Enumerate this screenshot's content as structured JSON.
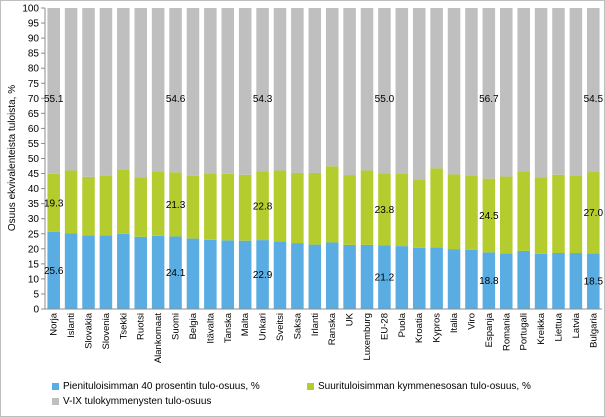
{
  "chart_data": {
    "type": "bar",
    "stacked": true,
    "title": "",
    "xlabel": "",
    "ylabel": "Osuus ekvivalenteista tuloista, %",
    "ylim": [
      0,
      100
    ],
    "yticks": [
      "0",
      "5",
      "10",
      "15",
      "20",
      "25",
      "30",
      "35",
      "40",
      "45",
      "50",
      "55",
      "60",
      "65",
      "70",
      "75",
      "80",
      "85",
      "90",
      "95",
      "100"
    ],
    "grid": false,
    "legend_position": "bottom",
    "categories": [
      "Norja",
      "Islanti",
      "Slovakia",
      "Slovenia",
      "Tsekki",
      "Ruotsi",
      "Alankomaat",
      "Suomi",
      "Belgia",
      "Itävalta",
      "Tanska",
      "Malta",
      "Unkari",
      "Sveitsi",
      "Saksa",
      "Irlanti",
      "Ranska",
      "UK",
      "Luxemburg",
      "EU-28",
      "Puola",
      "Kroatia",
      "Kypros",
      "Italia",
      "Viro",
      "Espanja",
      "Romania",
      "Portugali",
      "Kreikka",
      "Liettua",
      "Latvia",
      "Bulgaria"
    ],
    "series": [
      {
        "name": "Pienituloisimman 40 prosentin tulo-osuus, %",
        "color": "#5aade2",
        "values": [
          25.6,
          25.2,
          24.5,
          24.4,
          25.0,
          24.0,
          24.3,
          24.1,
          23.4,
          23.0,
          22.8,
          22.7,
          22.9,
          22.4,
          21.9,
          21.4,
          22.1,
          21.3,
          21.3,
          21.2,
          20.9,
          20.3,
          20.5,
          19.9,
          19.7,
          18.8,
          18.5,
          19.3,
          18.3,
          18.6,
          18.6,
          18.5
        ]
      },
      {
        "name": "Suurituloisimman kymmenesosan tulo-osuus, %",
        "color": "#b5cc2e",
        "values": [
          19.3,
          20.8,
          19.4,
          19.8,
          21.4,
          19.8,
          21.4,
          21.3,
          20.9,
          22.0,
          22.1,
          21.9,
          22.8,
          23.6,
          23.3,
          23.8,
          25.3,
          23.2,
          24.7,
          23.8,
          24.2,
          22.7,
          26.2,
          24.8,
          24.5,
          24.5,
          25.5,
          26.4,
          25.5,
          26.0,
          25.8,
          27.0
        ]
      },
      {
        "name": "V-IX tulokymmenysten tulo-osuus",
        "color": "#bfbfbf",
        "values": [
          55.1,
          54.0,
          56.1,
          55.8,
          53.6,
          56.2,
          54.3,
          54.6,
          55.7,
          55.0,
          55.1,
          55.4,
          54.3,
          54.0,
          54.8,
          54.8,
          52.6,
          55.5,
          54.0,
          55.0,
          54.9,
          57.0,
          53.3,
          55.3,
          55.8,
          56.7,
          56.0,
          54.3,
          56.2,
          55.4,
          55.6,
          54.5
        ]
      }
    ],
    "data_labels": [
      {
        "series": 0,
        "index": 0,
        "text": "25.6"
      },
      {
        "series": 0,
        "index": 7,
        "text": "24.1"
      },
      {
        "series": 0,
        "index": 12,
        "text": "22.9"
      },
      {
        "series": 0,
        "index": 19,
        "text": "21.2"
      },
      {
        "series": 0,
        "index": 25,
        "text": "18.8"
      },
      {
        "series": 0,
        "index": 31,
        "text": "18.5"
      },
      {
        "series": 1,
        "index": 0,
        "text": "19.3"
      },
      {
        "series": 1,
        "index": 7,
        "text": "21.3"
      },
      {
        "series": 1,
        "index": 12,
        "text": "22.8"
      },
      {
        "series": 1,
        "index": 19,
        "text": "23.8"
      },
      {
        "series": 1,
        "index": 25,
        "text": "24.5"
      },
      {
        "series": 1,
        "index": 31,
        "text": "27.0"
      },
      {
        "series": 2,
        "index": 0,
        "text": "55.1"
      },
      {
        "series": 2,
        "index": 7,
        "text": "54.6"
      },
      {
        "series": 2,
        "index": 12,
        "text": "54.3"
      },
      {
        "series": 2,
        "index": 19,
        "text": "55.0"
      },
      {
        "series": 2,
        "index": 25,
        "text": "56.7"
      },
      {
        "series": 2,
        "index": 31,
        "text": "54.5"
      }
    ]
  },
  "legend": {
    "items": [
      {
        "label": "Pienituloisimman 40 prosentin tulo-osuus, %",
        "color": "#5aade2"
      },
      {
        "label": "Suurituloisimman kymmenesosan tulo-osuus, %",
        "color": "#b5cc2e"
      },
      {
        "label": "V-IX tulokymmenysten tulo-osuus",
        "color": "#bfbfbf"
      }
    ]
  }
}
